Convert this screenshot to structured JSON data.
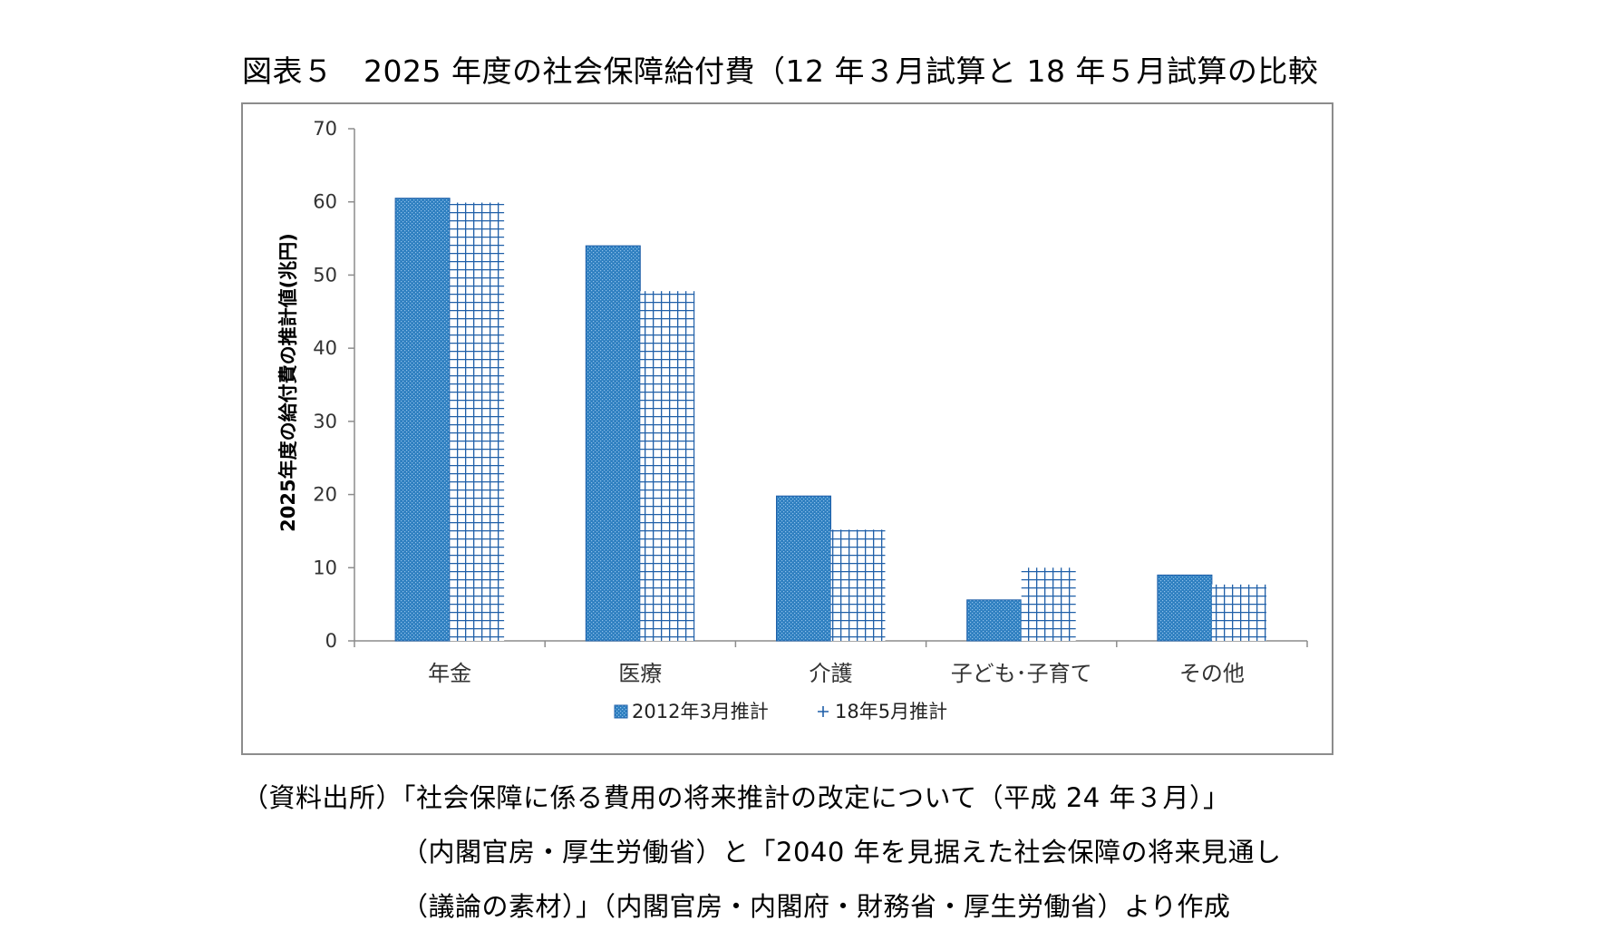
{
  "figure": {
    "title": "図表５　2025 年度の社会保障給付費（12 年３月試算と 18 年５月試算の比較"
  },
  "chart_data": {
    "type": "bar",
    "title": "",
    "xlabel": "",
    "ylabel": "2025年度の給付費の推計値(兆円)",
    "categories": [
      "年金",
      "医療",
      "介護",
      "子ども･子育て",
      "その他"
    ],
    "ylim": [
      0,
      70
    ],
    "yticks": [
      0,
      10,
      20,
      30,
      40,
      50,
      60,
      70
    ],
    "grid": false,
    "legend_position": "bottom",
    "series": [
      {
        "name": "2012年3月推計",
        "values": [
          60.5,
          54.0,
          19.8,
          5.6,
          9.0
        ],
        "color": "#2e7fc0",
        "pattern": "dots"
      },
      {
        "name": "18年5月推計",
        "values": [
          59.9,
          47.8,
          15.2,
          10.0,
          7.7
        ],
        "color": "#1f5fa8",
        "pattern": "grid"
      }
    ]
  },
  "source": {
    "lines": [
      "（資料出所）「社会保障に係る費用の将来推計の改定について（平成 24 年３月）」",
      "（内閣官房・厚生労働省）と「2040 年を見据えた社会保障の将来見通し",
      "（議論の素材）」（内閣官房・内閣府・財務省・厚生労働省）より作成"
    ]
  }
}
